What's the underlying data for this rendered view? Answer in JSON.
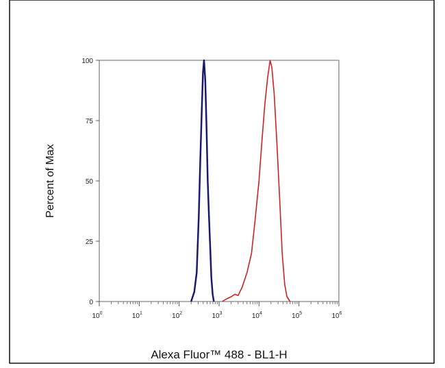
{
  "chart_data": {
    "type": "line",
    "xlabel": "Alexa Fluor™ 488 - BL1-H",
    "ylabel": "Percent of Max",
    "x_scale": "log",
    "xlim": [
      1,
      1000000
    ],
    "ylim": [
      0,
      100
    ],
    "x_ticks": [
      {
        "value": 1,
        "base": "10",
        "exp": "0"
      },
      {
        "value": 10,
        "base": "10",
        "exp": "1"
      },
      {
        "value": 100,
        "base": "10",
        "exp": "2"
      },
      {
        "value": 1000,
        "base": "10",
        "exp": "3"
      },
      {
        "value": 10000,
        "base": "10",
        "exp": "4"
      },
      {
        "value": 100000,
        "base": "10",
        "exp": "5"
      },
      {
        "value": 1000000,
        "base": "10",
        "exp": "6"
      }
    ],
    "y_ticks": [
      {
        "value": 0,
        "label": "0"
      },
      {
        "value": 25,
        "label": "25"
      },
      {
        "value": 50,
        "label": "50"
      },
      {
        "value": 75,
        "label": "75"
      },
      {
        "value": 100,
        "label": "100"
      }
    ],
    "grid": false,
    "legend": "none",
    "series": [
      {
        "color": "#1a1a6e",
        "points": [
          [
            200,
            0
          ],
          [
            240,
            4
          ],
          [
            275,
            12
          ],
          [
            310,
            35
          ],
          [
            340,
            60
          ],
          [
            370,
            80
          ],
          [
            395,
            95
          ],
          [
            420,
            100
          ],
          [
            450,
            92
          ],
          [
            485,
            72
          ],
          [
            520,
            50
          ],
          [
            560,
            35
          ],
          [
            600,
            22
          ],
          [
            640,
            10
          ],
          [
            690,
            3
          ],
          [
            740,
            0
          ]
        ]
      },
      {
        "color": "#cc2222",
        "points": [
          [
            1200,
            0
          ],
          [
            1500,
            1
          ],
          [
            2000,
            2
          ],
          [
            2500,
            3
          ],
          [
            3000,
            2.5
          ],
          [
            3800,
            6
          ],
          [
            5000,
            12
          ],
          [
            6500,
            20
          ],
          [
            8000,
            34
          ],
          [
            10000,
            50
          ],
          [
            12000,
            68
          ],
          [
            14000,
            82
          ],
          [
            16500,
            93
          ],
          [
            19000,
            100
          ],
          [
            21000,
            97
          ],
          [
            24000,
            86
          ],
          [
            28000,
            66
          ],
          [
            33000,
            42
          ],
          [
            38000,
            20
          ],
          [
            44000,
            7
          ],
          [
            50000,
            2
          ],
          [
            60000,
            0
          ]
        ]
      }
    ]
  }
}
